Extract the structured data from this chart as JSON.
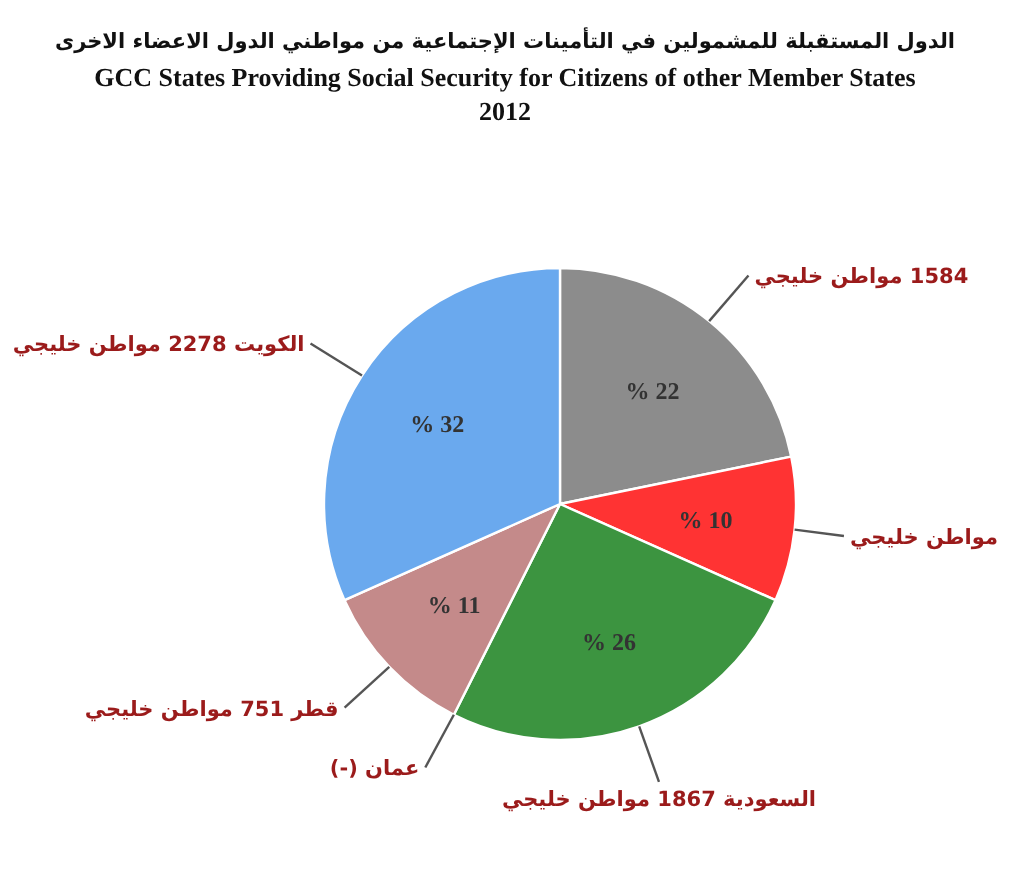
{
  "chart_data": {
    "type": "pie",
    "title": "الدول المستقبلة للمشمولين في التأمينات الإجتماعية من مواطني الدول الاعضاء الاخرى",
    "subtitle": "GCC States Providing Social Security for Citizens of other Member States",
    "annotations": [
      "2012"
    ],
    "categories": [
      "1584 مواطن خليجي",
      "مواطن خليجي",
      "السعودية 1867 مواطن خليجي",
      "عمان (-)",
      "قطر 751 مواطن خليجي",
      "الكويت 2278 مواطن خليجي"
    ],
    "values": [
      22,
      10,
      26,
      0,
      11,
      32
    ],
    "value_labels": [
      "% 22",
      "% 10",
      "% 26",
      null,
      "% 11",
      "% 32"
    ],
    "colors": [
      "#8c8c8c",
      "#ff3333",
      "#3c9440",
      null,
      "#c48a8a",
      "#6aa9ee"
    ]
  }
}
